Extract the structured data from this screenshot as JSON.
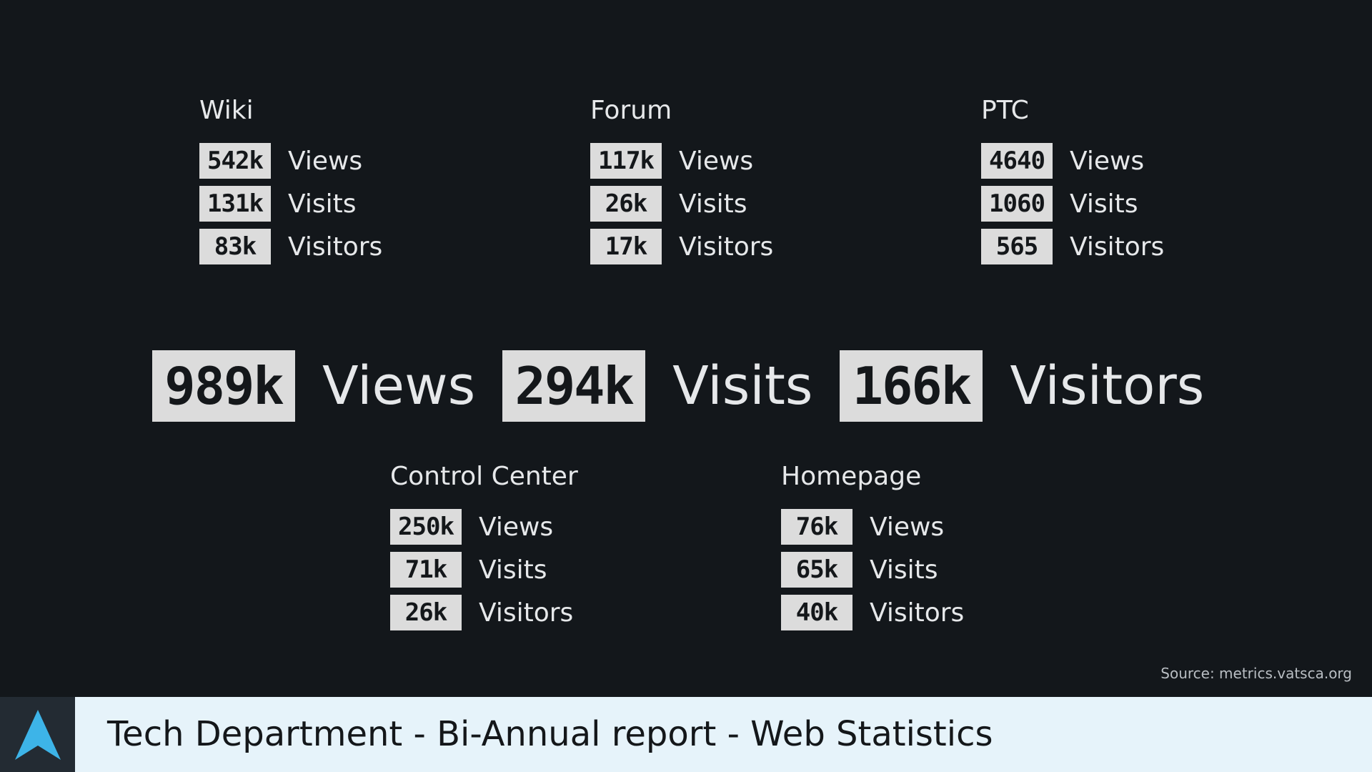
{
  "groups": [
    {
      "title": "Wiki",
      "stats": [
        {
          "value": "542k",
          "label": "Views"
        },
        {
          "value": "131k",
          "label": "Visits"
        },
        {
          "value": "83k",
          "label": "Visitors"
        }
      ]
    },
    {
      "title": "Forum",
      "stats": [
        {
          "value": "117k",
          "label": "Views"
        },
        {
          "value": "26k",
          "label": "Visits"
        },
        {
          "value": "17k",
          "label": "Visitors"
        }
      ]
    },
    {
      "title": "PTC",
      "stats": [
        {
          "value": "4640",
          "label": "Views"
        },
        {
          "value": "1060",
          "label": "Visits"
        },
        {
          "value": "565",
          "label": "Visitors"
        }
      ]
    },
    {
      "title": "Control Center",
      "stats": [
        {
          "value": "250k",
          "label": "Views"
        },
        {
          "value": "71k",
          "label": "Visits"
        },
        {
          "value": "26k",
          "label": "Visitors"
        }
      ]
    },
    {
      "title": "Homepage",
      "stats": [
        {
          "value": "76k",
          "label": "Views"
        },
        {
          "value": "65k",
          "label": "Visits"
        },
        {
          "value": "40k",
          "label": "Visitors"
        }
      ]
    }
  ],
  "totals": [
    {
      "value": "989k",
      "label": "Views"
    },
    {
      "value": "294k",
      "label": "Visits"
    },
    {
      "value": "166k",
      "label": "Visitors"
    }
  ],
  "source": "Source: metrics.vatsca.org",
  "footer": {
    "title": "Tech Department - Bi-Annual report - Web Statistics",
    "logo_icon": "arrow-up-icon",
    "logo_color": "#3db4e8"
  },
  "colors": {
    "background": "#13171b",
    "box": "#dcdcdc",
    "footer_bar": "#e6f3fa",
    "logo_box": "#232b33"
  }
}
